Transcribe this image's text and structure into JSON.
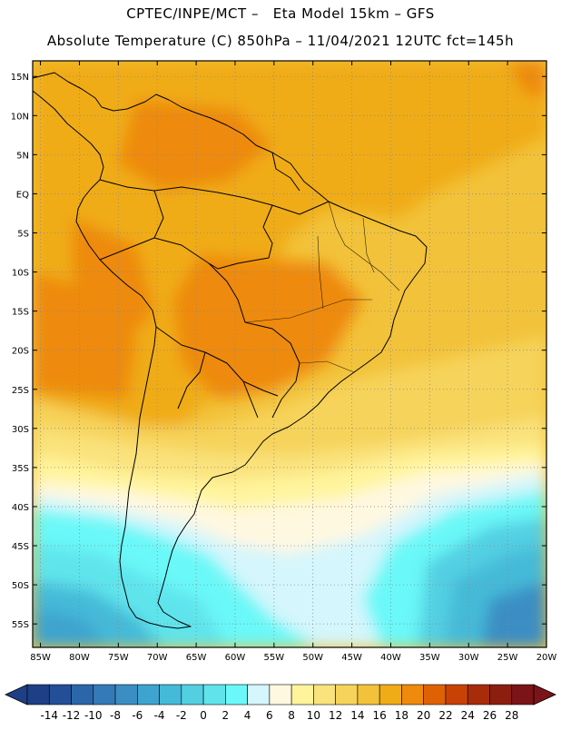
{
  "header": {
    "line1": "CPTEC/INPE/MCT –   Eta Model 15km – GFS",
    "line2": "Absolute Temperature (C) 850hPa – 11/04/2021 12UTC fct=145h"
  },
  "map": {
    "lat_labels": [
      "15N",
      "10N",
      "5N",
      "EQ",
      "5S",
      "10S",
      "15S",
      "20S",
      "25S",
      "30S",
      "35S",
      "40S",
      "45S",
      "50S",
      "55S"
    ],
    "lon_labels": [
      "85W",
      "80W",
      "75W",
      "70W",
      "65W",
      "60W",
      "55W",
      "50W",
      "45W",
      "40W",
      "35W",
      "30W",
      "25W",
      "20W"
    ],
    "lat_range": [
      17,
      -58
    ],
    "lon_range": [
      -86,
      -20
    ]
  },
  "colorbar": {
    "tick_labels": [
      "-14",
      "-12",
      "-10",
      "-8",
      "-6",
      "-4",
      "-2",
      "0",
      "2",
      "4",
      "6",
      "8",
      "10",
      "12",
      "14",
      "16",
      "18",
      "20",
      "22",
      "24",
      "26",
      "28"
    ],
    "colors": [
      "#1e3f86",
      "#234f98",
      "#2b66aa",
      "#347ab8",
      "#3a8ec4",
      "#3da4cf",
      "#44bad8",
      "#53cfe2",
      "#5fe4ec",
      "#6af8f8",
      "#d4f6fc",
      "#fff8e0",
      "#fff49c",
      "#fae27c",
      "#f6d35a",
      "#f2c23a",
      "#f0ac16",
      "#ee8a0c",
      "#de6204",
      "#c84206",
      "#a82c0a",
      "#8c1e10",
      "#7a1418"
    ]
  }
}
